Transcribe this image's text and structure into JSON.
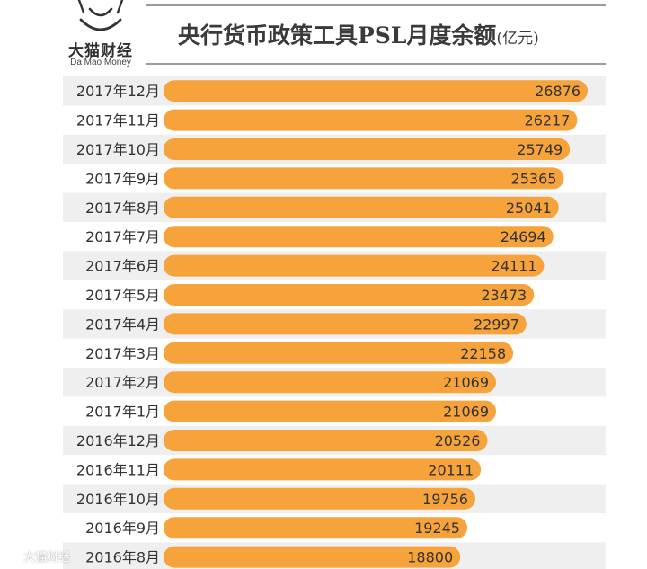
{
  "logo": {
    "name_cn": "大猫财经",
    "name_en": "Da Mao Money"
  },
  "colors": {
    "bar": "#F5A33A",
    "bar_text": "#333333",
    "stripe": "#EFEFEF",
    "rule": "#9A9A9A"
  },
  "chart_data": {
    "type": "bar",
    "orientation": "horizontal",
    "title": "央行货币政策工具PSL月度余额",
    "unit": "(亿元)",
    "grid": false,
    "categories": [
      "2017年12月",
      "2017年11月",
      "2017年10月",
      "2017年9月",
      "2017年8月",
      "2017年7月",
      "2017年6月",
      "2017年5月",
      "2017年4月",
      "2017年3月",
      "2017年2月",
      "2017年1月",
      "2016年12月",
      "2016年11月",
      "2016年10月",
      "2016年9月",
      "2016年8月"
    ],
    "values": [
      26876,
      26217,
      25749,
      25365,
      25041,
      24694,
      24111,
      23473,
      22997,
      22158,
      21069,
      21069,
      20526,
      20111,
      19756,
      19245,
      18800
    ]
  },
  "watermark": {
    "text": "大猫财经"
  }
}
